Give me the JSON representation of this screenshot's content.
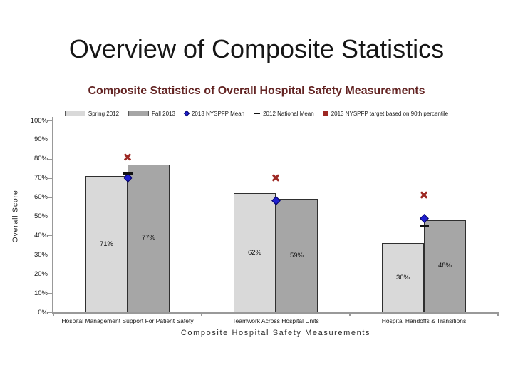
{
  "slide": {
    "title": "Overview of Composite Statistics"
  },
  "chart_data": {
    "type": "bar",
    "title": "Composite Statistics of Overall Hospital Safety Measurements",
    "xlabel": "Composite Hospital Safety Measurements",
    "ylabel": "Overall Score",
    "ylim": [
      0,
      100
    ],
    "grid": false,
    "legend_position": "top",
    "y_ticks": [
      "100%",
      "90%",
      "80%",
      "70%",
      "60%",
      "50%",
      "40%",
      "30%",
      "20%",
      "10%",
      "0%"
    ],
    "categories": [
      "Hospital Management Support For Patient Safety",
      "Teamwork Across Hospital Units",
      "Hospital Handoffs & Transitions"
    ],
    "series": [
      {
        "name": "Spring 2012",
        "kind": "bar",
        "marker": "bar",
        "color": "#d9d9d9",
        "values": [
          71,
          62,
          36
        ],
        "data_labels": [
          "71%",
          "62%",
          "36%"
        ]
      },
      {
        "name": "Fall 2013",
        "kind": "bar",
        "marker": "bar",
        "color": "#a6a6a6",
        "values": [
          77,
          59,
          48
        ],
        "data_labels": [
          "77%",
          "59%",
          "48%"
        ]
      },
      {
        "name": "2013 NYSPFP Mean",
        "kind": "marker",
        "marker": "diamond",
        "color": "#1f1fd0",
        "values": [
          70,
          58,
          49
        ]
      },
      {
        "name": "2012 National Mean",
        "kind": "marker",
        "marker": "dash",
        "color": "#111111",
        "values": [
          72.5,
          null,
          45
        ]
      },
      {
        "name": "2013 NYSPFP target based on 90th percentile",
        "kind": "marker",
        "marker": "x",
        "legend_marker": "square",
        "color": "#9d2823",
        "values": [
          81,
          70,
          61
        ]
      }
    ],
    "axis_color": "#999999"
  }
}
